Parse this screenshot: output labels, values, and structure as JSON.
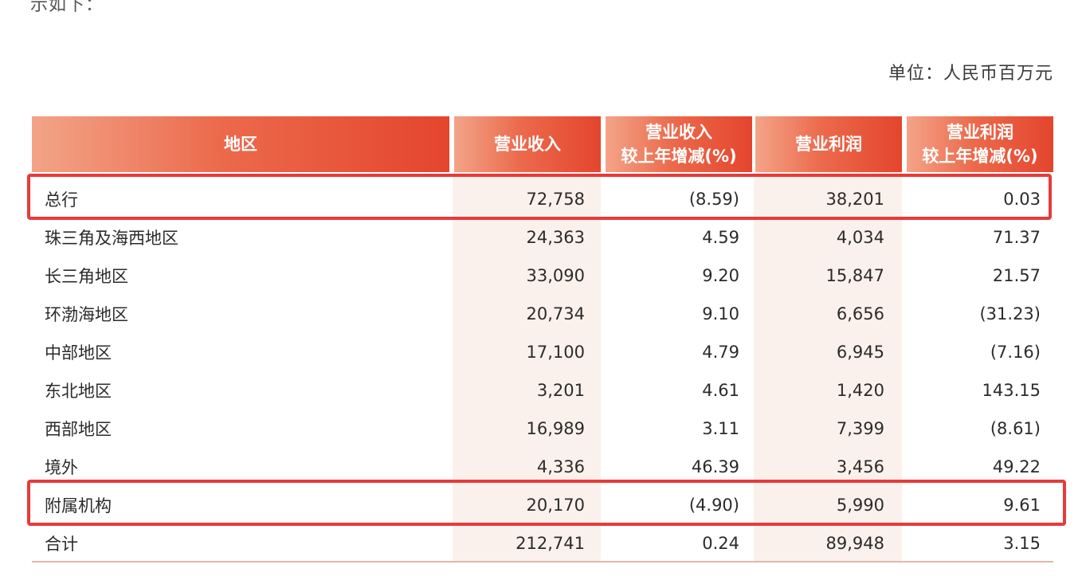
{
  "page": {
    "top_fragment": "示如下：",
    "unit": "单位：人民币百万元"
  },
  "table": {
    "headers": [
      "地区",
      "营业收入",
      "营业收入\n较上年增减(%)",
      "营业利润",
      "营业利润\n较上年增减(%)"
    ],
    "rows": [
      {
        "region": "总行",
        "revenue": "72,758",
        "revenue_change": "(8.59)",
        "profit": "38,201",
        "profit_change": "0.03",
        "highlighted": true
      },
      {
        "region": "珠三角及海西地区",
        "revenue": "24,363",
        "revenue_change": "4.59",
        "profit": "4,034",
        "profit_change": "71.37",
        "highlighted": false
      },
      {
        "region": "长三角地区",
        "revenue": "33,090",
        "revenue_change": "9.20",
        "profit": "15,847",
        "profit_change": "21.57",
        "highlighted": false
      },
      {
        "region": "环渤海地区",
        "revenue": "20,734",
        "revenue_change": "9.10",
        "profit": "6,656",
        "profit_change": "(31.23)",
        "highlighted": false
      },
      {
        "region": "中部地区",
        "revenue": "17,100",
        "revenue_change": "4.79",
        "profit": "6,945",
        "profit_change": "(7.16)",
        "highlighted": false
      },
      {
        "region": "东北地区",
        "revenue": "3,201",
        "revenue_change": "4.61",
        "profit": "1,420",
        "profit_change": "143.15",
        "highlighted": false
      },
      {
        "region": "西部地区",
        "revenue": "16,989",
        "revenue_change": "3.11",
        "profit": "7,399",
        "profit_change": "(8.61)",
        "highlighted": false
      },
      {
        "region": "境外",
        "revenue": "4,336",
        "revenue_change": "46.39",
        "profit": "3,456",
        "profit_change": "49.22",
        "highlighted": false
      },
      {
        "region": "附属机构",
        "revenue": "20,170",
        "revenue_change": "(4.90)",
        "profit": "5,990",
        "profit_change": "9.61",
        "highlighted": true
      },
      {
        "region": "合计",
        "revenue": "212,741",
        "revenue_change": "0.24",
        "profit": "89,948",
        "profit_change": "3.15",
        "highlighted": false
      }
    ]
  },
  "colors": {
    "header_gradient_start": "#f3a488",
    "header_gradient_end": "#e4452d",
    "highlight_border": "#e83a3a",
    "column_band": "#fbf1ec"
  }
}
